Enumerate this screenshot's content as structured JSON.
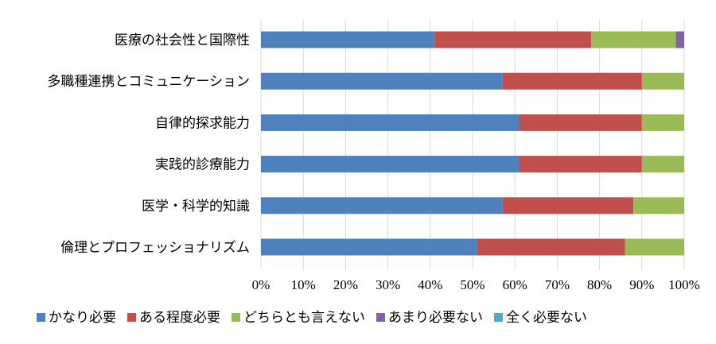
{
  "chart_data": {
    "type": "bar",
    "orientation": "horizontal",
    "stacked": true,
    "percent": true,
    "categories": [
      "医療の社会性と国際性",
      "多職種連携とコミュニケーション",
      "自律的探求能力",
      "実践的診療能力",
      "医学・科学的知識",
      "倫理とプロフェッショナリズム"
    ],
    "series": [
      {
        "name": "かなり必要",
        "color": "#4f81bd",
        "values": [
          41,
          57,
          61,
          61,
          57,
          51
        ]
      },
      {
        "name": "ある程度必要",
        "color": "#c0504d",
        "values": [
          37,
          33,
          29,
          29,
          31,
          35
        ]
      },
      {
        "name": "どちらとも言えない",
        "color": "#9bbb59",
        "values": [
          20,
          10,
          10,
          10,
          12,
          14
        ]
      },
      {
        "name": "あまり必要ない",
        "color": "#8064a2",
        "values": [
          2,
          0,
          0,
          0,
          0,
          0
        ]
      },
      {
        "name": "全く必要ない",
        "color": "#4bacc6",
        "values": [
          0,
          0,
          0,
          0,
          0,
          0
        ]
      }
    ],
    "x_ticks": [
      "0%",
      "10%",
      "20%",
      "30%",
      "40%",
      "50%",
      "60%",
      "70%",
      "80%",
      "90%",
      "100%"
    ],
    "xlim": [
      0,
      100
    ],
    "grid": true,
    "legend_position": "bottom",
    "title": "",
    "xlabel": "",
    "ylabel": ""
  }
}
